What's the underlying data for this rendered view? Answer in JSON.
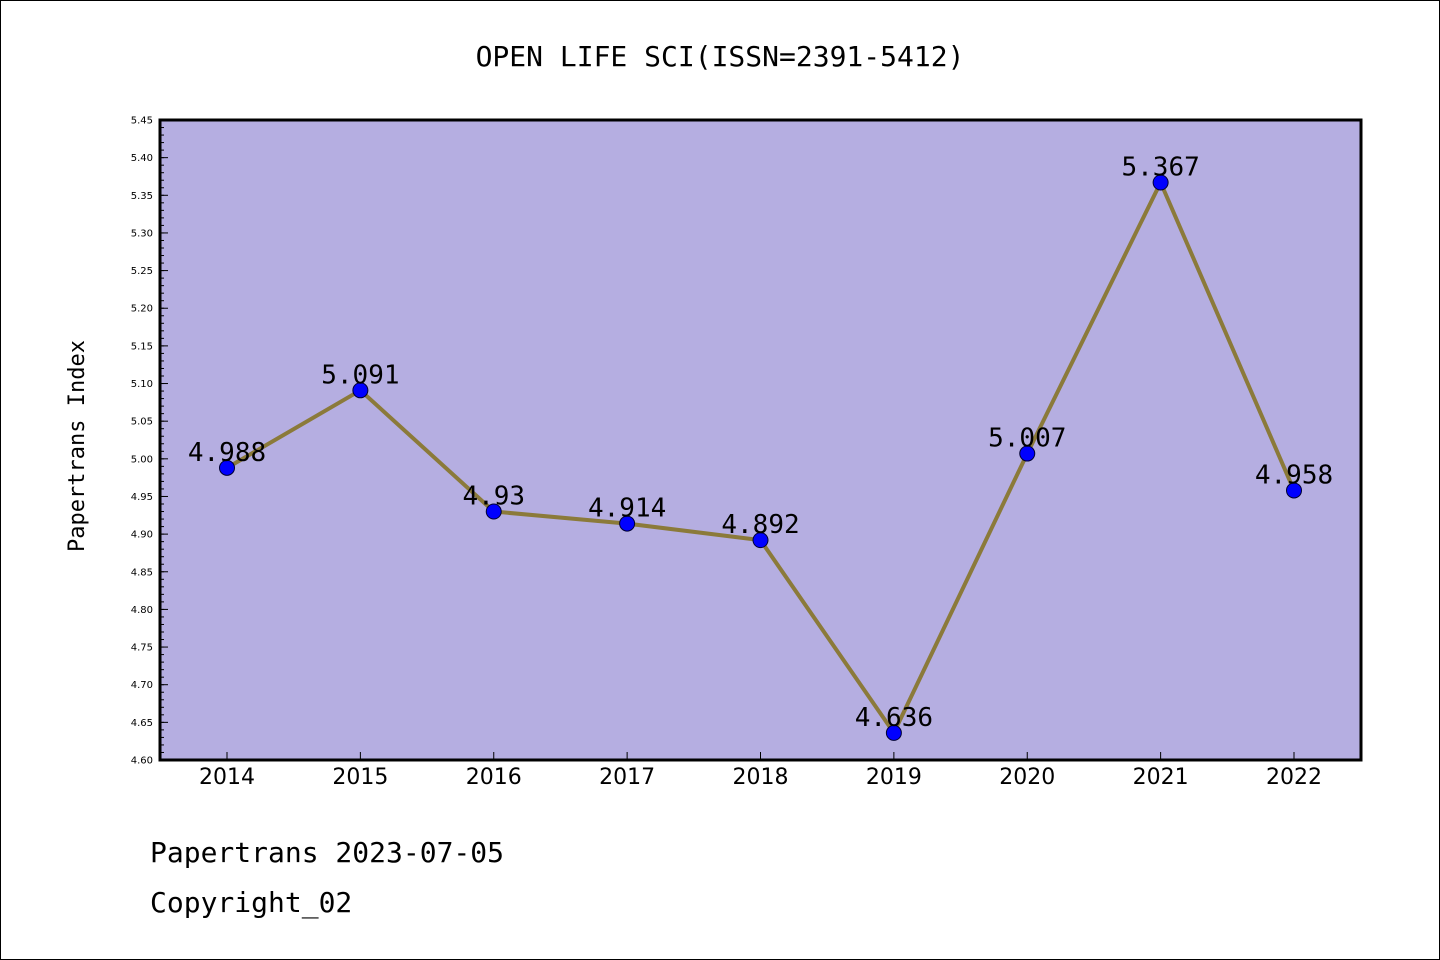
{
  "chart_data": {
    "type": "line",
    "title": "OPEN LIFE SCI(ISSN=2391-5412)",
    "xlabel": "",
    "ylabel": "Papertrans Index",
    "categories": [
      "2014",
      "2015",
      "2016",
      "2017",
      "2018",
      "2019",
      "2020",
      "2021",
      "2022"
    ],
    "values": [
      4.988,
      5.091,
      4.93,
      4.914,
      4.892,
      4.636,
      5.007,
      5.367,
      4.958
    ],
    "value_labels": [
      "4.988",
      "5.091",
      "4.93",
      "4.914",
      "4.892",
      "4.636",
      "5.007",
      "5.367",
      "4.958"
    ],
    "ylim": [
      4.6,
      5.45
    ],
    "ytick_labels": [
      "4.60",
      "4.65",
      "4.70",
      "4.75",
      "4.80",
      "4.85",
      "4.90",
      "4.95",
      "5.00",
      "5.05",
      "5.10",
      "5.15",
      "5.20",
      "5.25",
      "5.30",
      "5.35",
      "5.40",
      "5.45"
    ],
    "grid": false,
    "colors": {
      "plot_background": "#b5aee1",
      "line": "#8b7a3a",
      "marker": "#0000ff"
    }
  },
  "footer": {
    "line1": "Papertrans 2023-07-05",
    "line2": "Copyright_02"
  }
}
